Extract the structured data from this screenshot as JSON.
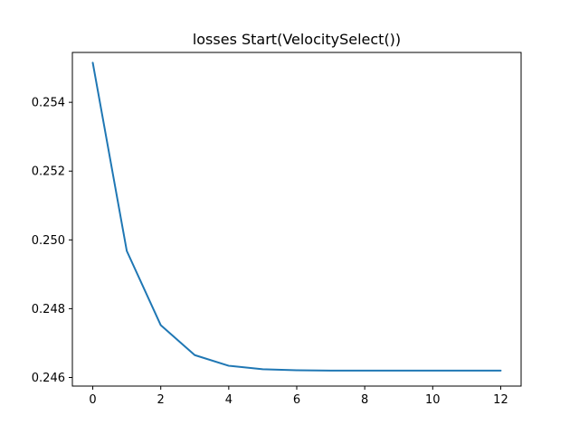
{
  "chart_data": {
    "type": "line",
    "title": "losses Start(VelocitySelect())",
    "xlabel": "",
    "ylabel": "",
    "xlim": [
      -0.6,
      12.6
    ],
    "ylim": [
      0.24575,
      0.25545
    ],
    "xticks": [
      0,
      2,
      4,
      6,
      8,
      10,
      12
    ],
    "xtick_labels": [
      "0",
      "2",
      "4",
      "6",
      "8",
      "10",
      "12"
    ],
    "yticks": [
      0.246,
      0.248,
      0.25,
      0.252,
      0.254
    ],
    "ytick_labels": [
      "0.246",
      "0.248",
      "0.250",
      "0.252",
      "0.254"
    ],
    "grid": false,
    "legend": "none",
    "series": [
      {
        "color": "#1f77b4",
        "x": [
          0,
          1,
          2,
          3,
          4,
          5,
          6,
          7,
          8,
          9,
          10,
          11,
          12
        ],
        "y": [
          0.25515,
          0.24968,
          0.24752,
          0.24665,
          0.24634,
          0.24624,
          0.24621,
          0.2462,
          0.2462,
          0.2462,
          0.2462,
          0.2462,
          0.2462
        ]
      }
    ]
  }
}
